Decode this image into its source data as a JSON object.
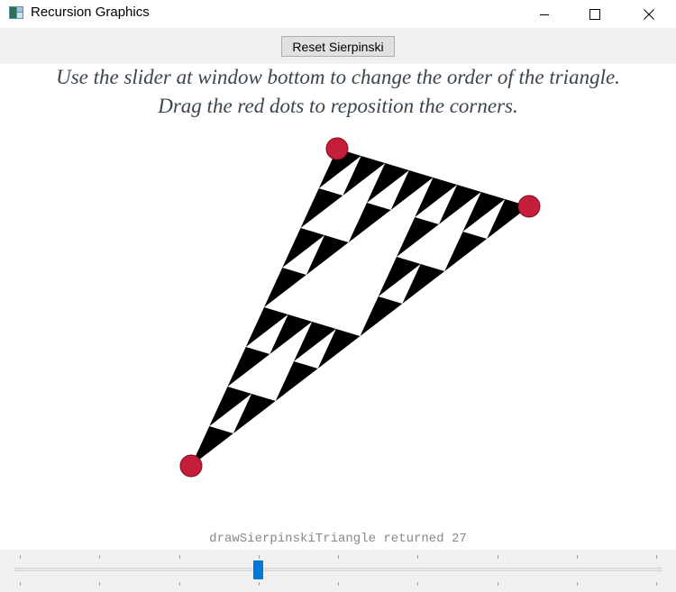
{
  "window": {
    "title": "Recursion Graphics",
    "minimize_icon": "minimize-icon",
    "maximize_icon": "maximize-icon",
    "close_icon": "close-icon"
  },
  "toolbar": {
    "reset_label": "Reset Sierpinski"
  },
  "instructions": {
    "line1": "Use the slider at window bottom to change the order of the triangle.",
    "line2": "Drag the red dots to reposition the corners."
  },
  "status": {
    "text": "drawSierpinskiTriangle returned 27"
  },
  "slider": {
    "min": 0,
    "max": 8,
    "value": 3,
    "ticks": 9
  },
  "sierpinski": {
    "order": 3,
    "triangle_count": 27
  },
  "colors": {
    "fill": "#000000",
    "corner_dot": "#c41e3a",
    "slider_thumb": "#0078d7"
  }
}
